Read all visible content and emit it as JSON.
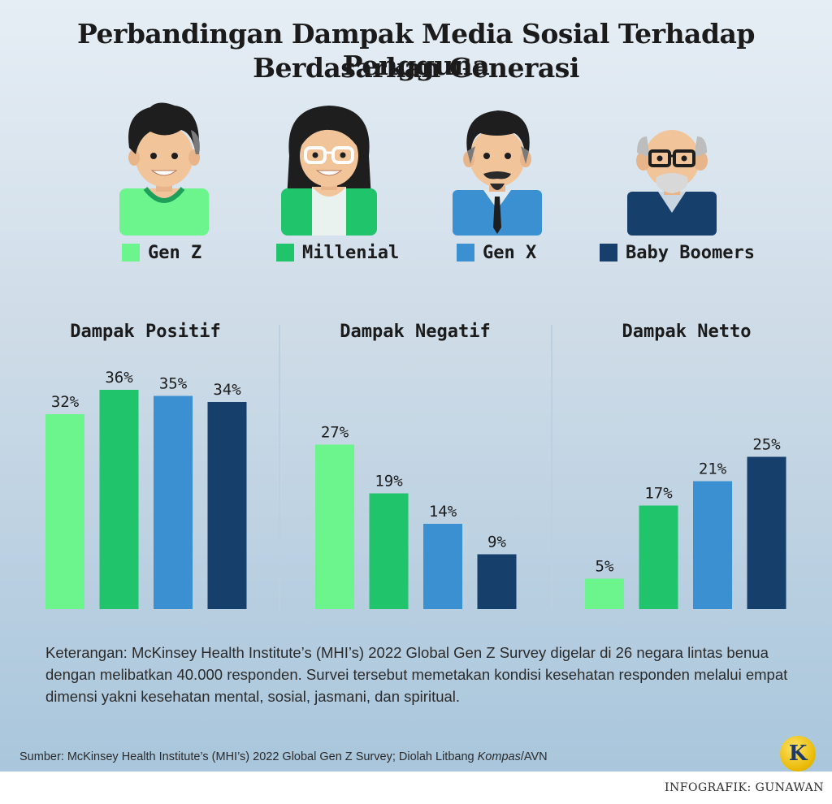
{
  "title_line1": "Perbandingan Dampak Media Sosial Terhadap Pengguna",
  "title_line2": "Berdasarkan Generasi",
  "colors": {
    "gen_z": "#6cf58c",
    "millenial": "#1fc46b",
    "gen_x": "#3a90d0",
    "baby_boomers": "#173f6c"
  },
  "legend": [
    {
      "label": "Gen Z",
      "color": "#6cf58c"
    },
    {
      "label": "Millenial",
      "color": "#1fc46b"
    },
    {
      "label": "Gen X",
      "color": "#3a90d0"
    },
    {
      "label": "Baby Boomers",
      "color": "#173f6c"
    }
  ],
  "chart_data": [
    {
      "type": "bar",
      "title": "Dampak Positif",
      "categories": [
        "Gen Z",
        "Millenial",
        "Gen X",
        "Baby Boomers"
      ],
      "values": [
        32,
        36,
        35,
        34
      ],
      "value_labels": [
        "32%",
        "36%",
        "35%",
        "34%"
      ],
      "ylim": [
        0,
        40
      ]
    },
    {
      "type": "bar",
      "title": "Dampak Negatif",
      "categories": [
        "Gen Z",
        "Millenial",
        "Gen X",
        "Baby Boomers"
      ],
      "values": [
        27,
        19,
        14,
        9
      ],
      "value_labels": [
        "27%",
        "19%",
        "14%",
        "9%"
      ],
      "ylim": [
        0,
        40
      ]
    },
    {
      "type": "bar",
      "title": "Dampak Netto",
      "categories": [
        "Gen Z",
        "Millenial",
        "Gen X",
        "Baby Boomers"
      ],
      "values": [
        5,
        17,
        21,
        25
      ],
      "value_labels": [
        "5%",
        "17%",
        "21%",
        "25%"
      ],
      "ylim": [
        0,
        40
      ]
    }
  ],
  "note": "Keterangan: McKinsey Health Institute’s (MHI’s) 2022 Global Gen Z Survey digelar di 26 negara lintas benua dengan melibatkan 40.000 responden. Survei tersebut memetakan kondisi kesehatan responden melalui empat dimensi yakni kesehatan mental, sosial, jasmani, dan spiritual.",
  "source_prefix": "Sumber: McKinsey Health Institute’s (MHI’s) 2022 Global Gen Z Survey; Diolah Litbang ",
  "source_italic": "Kompas",
  "source_suffix": "/AVN",
  "logo_letter": "K",
  "credit": "INFOGRAFIK: GUNAWAN"
}
